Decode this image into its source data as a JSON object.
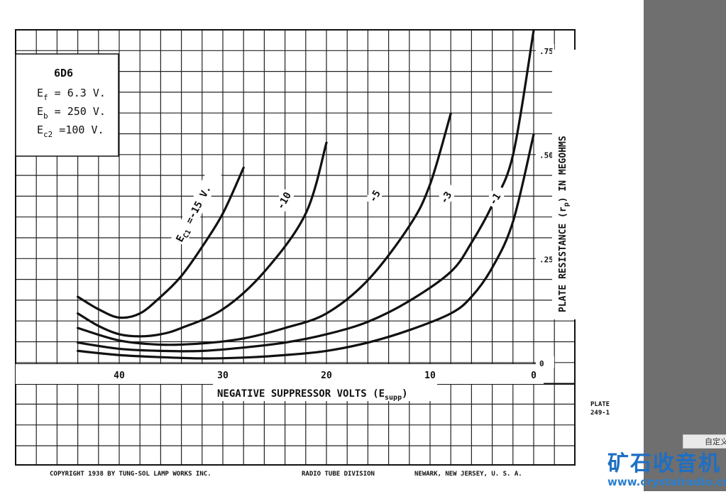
{
  "chart_data": {
    "type": "line",
    "tube": "6D6",
    "conditions": [
      {
        "sym": "E",
        "sub": "f",
        "rest": " = 6.3 V."
      },
      {
        "sym": "E",
        "sub": "b",
        "rest": " = 250 V."
      },
      {
        "sym": "E",
        "sub": "c2",
        "rest": " =100 V."
      }
    ],
    "xlabel": "NEGATIVE SUPPRESSOR VOLTS (E",
    "xlabel_sub": "supp",
    "xlabel_end": ")",
    "ylabel": "PLATE RESISTANCE (r",
    "ylabel_sub": "p",
    "ylabel_end": ") IN MEGOHMS",
    "xlim": [
      44,
      0
    ],
    "ylim": [
      0,
      0.8
    ],
    "x_ticks": [
      {
        "v": 40,
        "label": "40"
      },
      {
        "v": 30,
        "label": "30"
      },
      {
        "v": 20,
        "label": "20"
      },
      {
        "v": 10,
        "label": "10"
      },
      {
        "v": 0,
        "label": "0"
      }
    ],
    "y_ticks": [
      {
        "v": 0,
        "label": "0"
      },
      {
        "v": 0.25,
        "label": ".25"
      },
      {
        "v": 0.5,
        "label": ".50"
      },
      {
        "v": 0.75,
        "label": ".75"
      }
    ],
    "series": [
      {
        "name": "-15 V.",
        "label_prefix": "E",
        "label_sub": "C1",
        "label_mid": " =",
        "points": [
          [
            44,
            0.16
          ],
          [
            42,
            0.13
          ],
          [
            40,
            0.11
          ],
          [
            38,
            0.12
          ],
          [
            36,
            0.16
          ],
          [
            34,
            0.21
          ],
          [
            32,
            0.28
          ],
          [
            30,
            0.36
          ],
          [
            28,
            0.47
          ]
        ]
      },
      {
        "name": "-10",
        "points": [
          [
            44,
            0.12
          ],
          [
            42,
            0.09
          ],
          [
            40,
            0.07
          ],
          [
            38,
            0.065
          ],
          [
            36,
            0.07
          ],
          [
            34,
            0.085
          ],
          [
            30,
            0.13
          ],
          [
            26,
            0.22
          ],
          [
            22,
            0.36
          ],
          [
            20,
            0.53
          ]
        ]
      },
      {
        "name": "-5",
        "points": [
          [
            44,
            0.085
          ],
          [
            40,
            0.055
          ],
          [
            36,
            0.045
          ],
          [
            32,
            0.048
          ],
          [
            28,
            0.06
          ],
          [
            24,
            0.085
          ],
          [
            20,
            0.12
          ],
          [
            16,
            0.2
          ],
          [
            12,
            0.33
          ],
          [
            10,
            0.43
          ],
          [
            8,
            0.6
          ]
        ]
      },
      {
        "name": "-3",
        "points": [
          [
            44,
            0.05
          ],
          [
            40,
            0.035
          ],
          [
            36,
            0.03
          ],
          [
            32,
            0.03
          ],
          [
            28,
            0.038
          ],
          [
            24,
            0.05
          ],
          [
            20,
            0.07
          ],
          [
            16,
            0.1
          ],
          [
            12,
            0.15
          ],
          [
            8,
            0.22
          ],
          [
            6,
            0.29
          ],
          [
            4,
            0.38
          ],
          [
            2,
            0.5
          ],
          [
            0,
            0.8
          ]
        ]
      },
      {
        "name": "-1",
        "points": [
          [
            44,
            0.03
          ],
          [
            40,
            0.02
          ],
          [
            36,
            0.015
          ],
          [
            32,
            0.012
          ],
          [
            28,
            0.014
          ],
          [
            24,
            0.02
          ],
          [
            20,
            0.03
          ],
          [
            16,
            0.05
          ],
          [
            12,
            0.08
          ],
          [
            8,
            0.12
          ],
          [
            6,
            0.16
          ],
          [
            4,
            0.23
          ],
          [
            2,
            0.34
          ],
          [
            0,
            0.55
          ]
        ]
      }
    ]
  },
  "footer": {
    "copyright": "COPYRIGHT  1938  BY  TUNG-SOL LAMP WORKS INC.",
    "division": "RADIO TUBE DIVISION",
    "location": "NEWARK, NEW JERSEY, U. S. A."
  },
  "plate": {
    "line1": "PLATE",
    "line2": "249-1"
  },
  "sidebar": {
    "tab_label": "自定义"
  },
  "watermark": {
    "text_cn": "矿石收音机",
    "url": "www.crystalradio.cn"
  }
}
